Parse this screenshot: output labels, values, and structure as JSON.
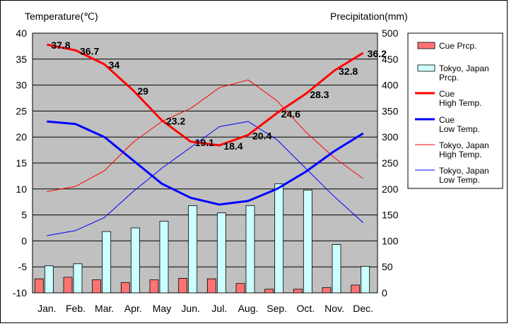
{
  "chart_data": {
    "type": "bar+line",
    "y_left_label": "Temperature(℃)",
    "y_right_label": "Precipitation(mm)",
    "y_left_lim": [
      -10,
      40
    ],
    "y_right_lim": [
      0,
      500
    ],
    "y_left_ticks": [
      "40",
      "35",
      "30",
      "25",
      "20",
      "15",
      "10",
      "5",
      "0",
      "-5",
      "-10"
    ],
    "y_right_ticks": [
      "500",
      "450",
      "400",
      "350",
      "300",
      "250",
      "200",
      "150",
      "100",
      "50",
      "0"
    ],
    "categories": [
      "Jan.",
      "Feb.",
      "Mar.",
      "Apr.",
      "May",
      "Jun.",
      "Jul.",
      "Aug.",
      "Sep.",
      "Oct.",
      "Nov.",
      "Dec."
    ],
    "grid": true,
    "legend_position": "right",
    "bars": [
      {
        "name": "Cue Prcp.",
        "color": "#ff7373",
        "values": [
          27,
          30,
          25,
          20,
          25,
          28,
          27,
          18,
          7,
          7,
          10,
          15
        ]
      },
      {
        "name": "Tokyo, Japan Prcp.",
        "color": "#ccffff",
        "values": [
          52,
          56,
          118,
          125,
          138,
          168,
          154,
          168,
          210,
          198,
          93,
          51
        ]
      }
    ],
    "lines": [
      {
        "name": "Cue High Temp.",
        "color": "#ff0000",
        "width": 3,
        "values": [
          37.8,
          36.7,
          34,
          29,
          23.2,
          19.1,
          18.4,
          20.4,
          24.6,
          28.3,
          32.8,
          36.2
        ]
      },
      {
        "name": "Cue Low Temp.",
        "color": "#0000ff",
        "width": 3,
        "values": [
          23,
          22.5,
          20,
          15.5,
          11,
          8.3,
          7,
          7.7,
          10,
          13.3,
          17.3,
          20.7
        ]
      },
      {
        "name": "Tokyo, Japan High Temp.",
        "color": "#ff0000",
        "width": 1,
        "values": [
          9.5,
          10.5,
          13.5,
          19,
          23,
          25.5,
          29.5,
          31,
          27,
          21,
          16,
          12
        ]
      },
      {
        "name": "Tokyo, Japan Low Temp.",
        "color": "#0000ff",
        "width": 1,
        "values": [
          1,
          2,
          4.5,
          9.5,
          14,
          18,
          22,
          23,
          19.5,
          14,
          8.5,
          3.5
        ]
      }
    ],
    "data_labels": [
      "37.8",
      "36.7",
      "34",
      "29",
      "23.2",
      "19.1",
      "18.4",
      "20.4",
      "24.6",
      "28.3",
      "32.8",
      "36.2"
    ],
    "legend": [
      {
        "lines": [
          "Cue Prcp."
        ],
        "kind": "bar",
        "color": "#ff7373"
      },
      {
        "lines": [
          "Tokyo, Japan",
          "Prcp."
        ],
        "kind": "bar",
        "color": "#ccffff"
      },
      {
        "lines": [
          "Cue",
          " High Temp."
        ],
        "kind": "line",
        "color": "#ff0000",
        "width": 3
      },
      {
        "lines": [
          "Cue",
          " Low Temp."
        ],
        "kind": "line",
        "color": "#0000ff",
        "width": 3
      },
      {
        "lines": [
          "Tokyo, Japan",
          "High Temp."
        ],
        "kind": "line",
        "color": "#ff0000",
        "width": 1
      },
      {
        "lines": [
          "Tokyo, Japan",
          "Low Temp."
        ],
        "kind": "line",
        "color": "#0000ff",
        "width": 1
      }
    ]
  }
}
